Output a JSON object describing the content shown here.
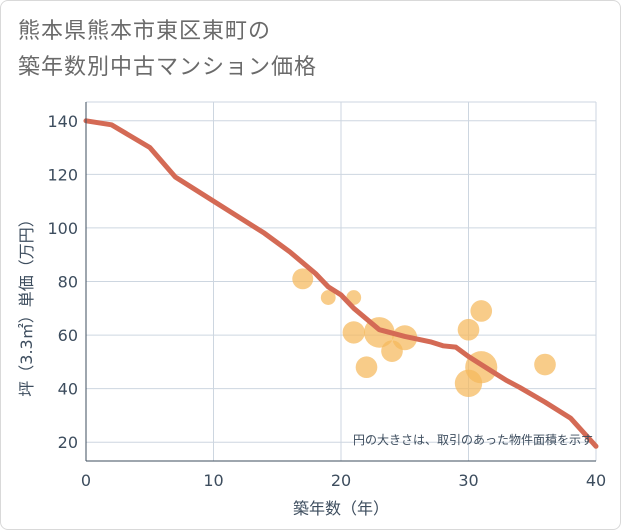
{
  "title_line1": "熊本県熊本市東区東町の",
  "title_line2": "築年数別中古マンション価格",
  "chart_data": {
    "type": "scatter",
    "title": "熊本県熊本市東区東町の築年数別中古マンション価格",
    "xlabel": "築年数（年）",
    "ylabel": "坪（3.3㎡）単価（万円）",
    "xlim": [
      0,
      40
    ],
    "ylim": [
      13,
      147
    ],
    "xticks": [
      0,
      10,
      20,
      30,
      40
    ],
    "yticks": [
      20,
      40,
      60,
      80,
      100,
      120,
      140
    ],
    "grid": true,
    "note": "円の大きさは、取引のあった物件面積を示す",
    "colors": {
      "points": "#f5b95c",
      "line": "#d46a55",
      "grid": "#cdd6e0",
      "axis": "#3d4d5e"
    },
    "points": [
      {
        "x": 17,
        "y": 81,
        "size": 70
      },
      {
        "x": 19,
        "y": 74,
        "size": 35
      },
      {
        "x": 21,
        "y": 74,
        "size": 35
      },
      {
        "x": 21,
        "y": 61,
        "size": 80
      },
      {
        "x": 22,
        "y": 48,
        "size": 75
      },
      {
        "x": 23,
        "y": 61,
        "size": 150
      },
      {
        "x": 24,
        "y": 54,
        "size": 75
      },
      {
        "x": 25,
        "y": 59,
        "size": 100
      },
      {
        "x": 30,
        "y": 62,
        "size": 75
      },
      {
        "x": 30,
        "y": 42,
        "size": 120
      },
      {
        "x": 31,
        "y": 48,
        "size": 165
      },
      {
        "x": 31,
        "y": 69,
        "size": 75
      },
      {
        "x": 36,
        "y": 49,
        "size": 75
      }
    ],
    "trend_line": {
      "x": [
        0,
        2,
        5,
        7,
        10,
        14,
        16,
        18,
        19,
        20,
        21,
        23,
        25,
        27,
        28,
        29,
        30,
        31,
        32,
        33,
        34,
        36,
        38,
        40
      ],
      "y": [
        140,
        138.5,
        130,
        119,
        110,
        98,
        91,
        83,
        78,
        75,
        70,
        62,
        59.5,
        57.5,
        56,
        55.5,
        52,
        49,
        46,
        43,
        40.5,
        35,
        29,
        18.5
      ]
    }
  }
}
